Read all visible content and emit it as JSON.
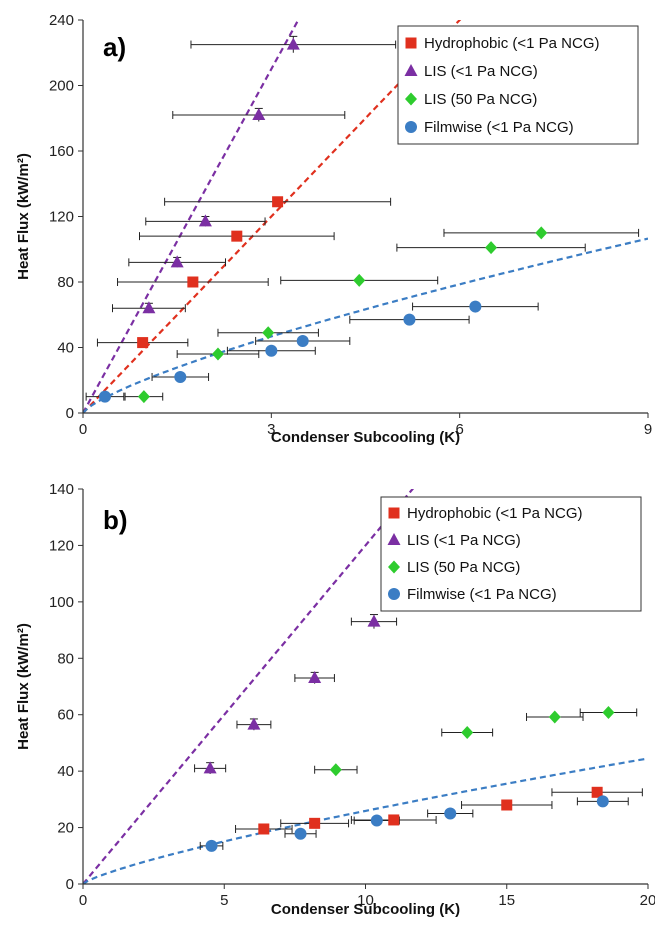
{
  "chart_data": [
    {
      "type": "scatter",
      "panel_label": "a)",
      "xlabel": "Condenser Subcooling (K)",
      "ylabel": "Heat Flux (kW/m²)",
      "xlim": [
        0,
        9
      ],
      "ylim": [
        0,
        240
      ],
      "xticks": [
        0,
        3,
        6,
        9
      ],
      "yticks": [
        0,
        40,
        80,
        120,
        160,
        200,
        240
      ],
      "grid": false,
      "legend_position": "top-right",
      "series": [
        {
          "name": "Hydrophobic (<1 Pa NCG)",
          "color": "#e0301e",
          "marker": "square",
          "points": [
            {
              "x": 0.95,
              "y": 43,
              "xerr": 0.72
            },
            {
              "x": 1.75,
              "y": 80,
              "xerr": 1.2
            },
            {
              "x": 2.45,
              "y": 108,
              "xerr": 1.55
            },
            {
              "x": 3.1,
              "y": 129,
              "xerr": 1.8
            }
          ]
        },
        {
          "name": "LIS (<1 Pa NCG)",
          "color": "#7b2fa3",
          "marker": "triangle",
          "points": [
            {
              "x": 1.05,
              "y": 64,
              "xerr": 0.58,
              "yerr": 3
            },
            {
              "x": 1.5,
              "y": 92,
              "xerr": 0.77,
              "yerr": 3
            },
            {
              "x": 1.95,
              "y": 117,
              "xerr": 0.95,
              "yerr": 3
            },
            {
              "x": 2.8,
              "y": 182,
              "xerr": 1.37,
              "yerr": 4
            },
            {
              "x": 3.35,
              "y": 225,
              "xerr": 1.63,
              "yerr": 5
            }
          ]
        },
        {
          "name": "LIS (50 Pa NCG)",
          "color": "#2ecc2e",
          "marker": "diamond",
          "points": [
            {
              "x": 0.97,
              "y": 10,
              "xerr": 0.3
            },
            {
              "x": 2.15,
              "y": 36,
              "xerr": 0.65
            },
            {
              "x": 2.95,
              "y": 49,
              "xerr": 0.8
            },
            {
              "x": 4.4,
              "y": 81,
              "xerr": 1.25
            },
            {
              "x": 6.5,
              "y": 101,
              "xerr": 1.5
            },
            {
              "x": 7.3,
              "y": 110,
              "xerr": 1.55
            }
          ]
        },
        {
          "name": "Filmwise (<1 Pa NCG)",
          "color": "#3b7dc4",
          "marker": "circle",
          "points": [
            {
              "x": 0.35,
              "y": 10,
              "xerr": 0.3
            },
            {
              "x": 1.55,
              "y": 22,
              "xerr": 0.45
            },
            {
              "x": 3.0,
              "y": 38,
              "xerr": 0.7
            },
            {
              "x": 3.5,
              "y": 44,
              "xerr": 0.75
            },
            {
              "x": 5.2,
              "y": 57,
              "xerr": 0.95
            },
            {
              "x": 6.25,
              "y": 65,
              "xerr": 1.0
            }
          ]
        }
      ],
      "fits": [
        {
          "color": "#7b2fa3",
          "kind": "linear",
          "slope": 70
        },
        {
          "color": "#e0301e",
          "kind": "linear",
          "slope": 40
        },
        {
          "color": "#3b7dc4",
          "kind": "power",
          "coef": 20.5,
          "exp": 0.75
        }
      ]
    },
    {
      "type": "scatter",
      "panel_label": "b)",
      "xlabel": "Condenser Subcooling (K)",
      "ylabel": "Heat Flux (kW/m²)",
      "xlim": [
        0,
        20
      ],
      "ylim": [
        0,
        140
      ],
      "xticks": [
        0,
        5,
        10,
        15,
        20
      ],
      "yticks": [
        0,
        20,
        40,
        60,
        80,
        100,
        120,
        140
      ],
      "grid": false,
      "legend_position": "top-right",
      "series": [
        {
          "name": "Hydrophobic (<1 Pa NCG)",
          "color": "#e0301e",
          "marker": "square",
          "points": [
            {
              "x": 6.4,
              "y": 19.5,
              "xerr": 1.0
            },
            {
              "x": 8.2,
              "y": 21.5,
              "xerr": 1.2
            },
            {
              "x": 11.0,
              "y": 22.7,
              "xerr": 1.5
            },
            {
              "x": 15.0,
              "y": 28,
              "xerr": 1.6
            },
            {
              "x": 18.2,
              "y": 32.5,
              "xerr": 1.6
            }
          ]
        },
        {
          "name": "LIS (<1 Pa NCG)",
          "color": "#7b2fa3",
          "marker": "triangle",
          "points": [
            {
              "x": 4.5,
              "y": 41,
              "xerr": 0.55,
              "yerr": 2
            },
            {
              "x": 6.05,
              "y": 56.5,
              "xerr": 0.6,
              "yerr": 2
            },
            {
              "x": 8.2,
              "y": 73,
              "xerr": 0.7,
              "yerr": 2
            },
            {
              "x": 10.3,
              "y": 93,
              "xerr": 0.8,
              "yerr": 2.5
            }
          ]
        },
        {
          "name": "LIS (50 Pa NCG)",
          "color": "#2ecc2e",
          "marker": "diamond",
          "points": [
            {
              "x": 8.95,
              "y": 40.5,
              "xerr": 0.75
            },
            {
              "x": 13.6,
              "y": 53.7,
              "xerr": 0.9
            },
            {
              "x": 16.7,
              "y": 59.2,
              "xerr": 1.0
            },
            {
              "x": 18.6,
              "y": 60.8,
              "xerr": 1.0
            }
          ]
        },
        {
          "name": "Filmwise (<1 Pa NCG)",
          "color": "#3b7dc4",
          "marker": "circle",
          "points": [
            {
              "x": 4.55,
              "y": 13.5,
              "xerr": 0.4
            },
            {
              "x": 7.7,
              "y": 17.8,
              "xerr": 0.55
            },
            {
              "x": 10.4,
              "y": 22.5,
              "xerr": 0.8
            },
            {
              "x": 13.0,
              "y": 25,
              "xerr": 0.8
            },
            {
              "x": 18.4,
              "y": 29.3,
              "xerr": 0.9
            }
          ]
        }
      ],
      "fits": [
        {
          "color": "#7b2fa3",
          "kind": "linear",
          "slope": 12
        },
        {
          "color": "#3b7dc4",
          "kind": "power",
          "coef": 4.3,
          "exp": 0.78
        }
      ]
    }
  ]
}
